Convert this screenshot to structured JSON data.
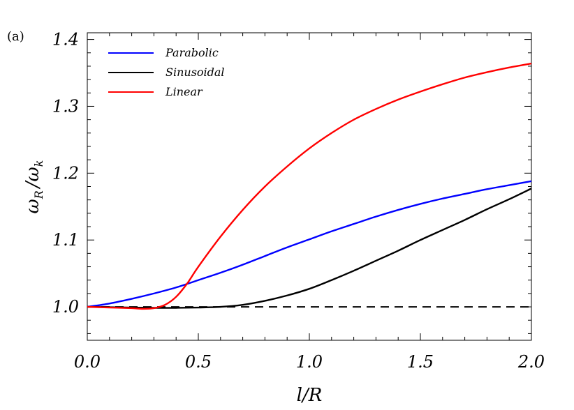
{
  "chart_data": {
    "type": "line",
    "panel_label": "(a)",
    "xlabel": "l/R",
    "ylabel": "ω_R / ω_k",
    "ylabel_main": "ω",
    "ylabel_sub": "R",
    "ylabel_div": "/",
    "ylabel_main2": "ω",
    "ylabel_sub2": "k",
    "xlim": [
      0.0,
      2.0
    ],
    "ylim": [
      0.95,
      1.41
    ],
    "xticks": [
      0.0,
      0.5,
      1.0,
      1.5,
      2.0
    ],
    "xtick_labels": [
      "0.0",
      "0.5",
      "1.0",
      "1.5",
      "2.0"
    ],
    "yticks": [
      1.0,
      1.1,
      1.2,
      1.3,
      1.4
    ],
    "ytick_labels": [
      "1.0",
      "1.1",
      "1.2",
      "1.3",
      "1.4"
    ],
    "grid": false,
    "legend_position": "top-left",
    "series": [
      {
        "name": "Parabolic",
        "color": "#0000ff",
        "x": [
          0.0,
          0.1,
          0.2,
          0.3,
          0.4,
          0.5,
          0.6,
          0.7,
          0.8,
          0.9,
          1.0,
          1.1,
          1.2,
          1.3,
          1.4,
          1.5,
          1.6,
          1.7,
          1.8,
          1.9,
          2.0
        ],
        "y": [
          1.0,
          1.005,
          1.012,
          1.02,
          1.029,
          1.04,
          1.051,
          1.063,
          1.076,
          1.089,
          1.101,
          1.113,
          1.124,
          1.135,
          1.145,
          1.154,
          1.162,
          1.169,
          1.176,
          1.182,
          1.188
        ]
      },
      {
        "name": "Sinusoidal",
        "color": "#000000",
        "x": [
          0.0,
          0.1,
          0.2,
          0.3,
          0.4,
          0.5,
          0.6,
          0.7,
          0.8,
          0.9,
          1.0,
          1.1,
          1.2,
          1.3,
          1.4,
          1.5,
          1.6,
          1.7,
          1.8,
          1.9,
          2.0
        ],
        "y": [
          1.0,
          0.9995,
          0.999,
          0.9985,
          0.9985,
          0.999,
          1.0,
          1.003,
          1.009,
          1.017,
          1.027,
          1.04,
          1.054,
          1.069,
          1.084,
          1.1,
          1.115,
          1.13,
          1.146,
          1.161,
          1.177
        ]
      },
      {
        "name": "Linear",
        "color": "#ff0000",
        "x": [
          0.0,
          0.1,
          0.2,
          0.25,
          0.3,
          0.35,
          0.4,
          0.45,
          0.5,
          0.6,
          0.7,
          0.8,
          0.9,
          1.0,
          1.1,
          1.2,
          1.3,
          1.4,
          1.5,
          1.6,
          1.7,
          1.8,
          1.9,
          2.0
        ],
        "y": [
          1.0,
          0.999,
          0.998,
          0.997,
          0.998,
          1.003,
          1.015,
          1.035,
          1.06,
          1.105,
          1.145,
          1.18,
          1.21,
          1.237,
          1.26,
          1.28,
          1.296,
          1.31,
          1.322,
          1.333,
          1.343,
          1.351,
          1.358,
          1.364
        ]
      }
    ],
    "reference_line": {
      "y": 1.0,
      "style": "dashed",
      "color": "#000000"
    }
  }
}
